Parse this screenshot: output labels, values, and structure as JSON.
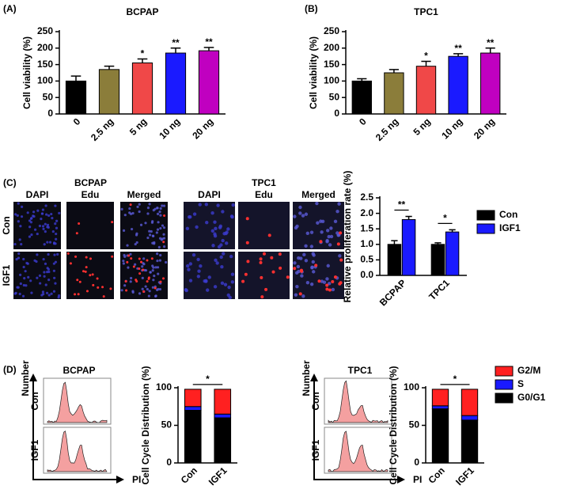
{
  "panel_labels": [
    "(A)",
    "(B)",
    "(C)",
    "(D)"
  ],
  "image_panel": {
    "groups": [
      {
        "title": "BCPAP",
        "columns": [
          "DAPI",
          "Edu",
          "Merged"
        ]
      },
      {
        "title": "TPC1",
        "columns": [
          "DAPI",
          "Edu",
          "Merged"
        ]
      }
    ],
    "rows": [
      "Con",
      "IGF1"
    ]
  },
  "flow_panels": [
    {
      "title": "BCPAP",
      "rows": [
        "Con",
        "IGF1"
      ],
      "x_label": "PI",
      "y_label": "Number"
    },
    {
      "title": "TPC1",
      "rows": [
        "Con",
        "IGF1"
      ],
      "x_label": "PI",
      "y_label": "Number"
    }
  ],
  "chart_data": [
    {
      "type": "bar",
      "title": "BCPAP",
      "y_label": "Cell  viability (%)",
      "categories": [
        "0",
        "2.5 ng",
        "5 ng",
        "10 ng",
        "20 ng"
      ],
      "values": [
        100,
        135,
        155,
        185,
        192
      ],
      "errors": [
        15,
        10,
        12,
        15,
        10
      ],
      "colors": [
        "#000000",
        "#8b7d3a",
        "#f04848",
        "#1a1aff",
        "#c000c0"
      ],
      "value_annotations": [
        null,
        null,
        "*",
        "**",
        "**"
      ],
      "ylim": [
        0,
        250
      ],
      "yticks": [
        0,
        50,
        100,
        150,
        200,
        250
      ]
    },
    {
      "type": "bar",
      "title": "TPC1",
      "y_label": "Cell  viability (%)",
      "categories": [
        "0",
        "2.5 ng",
        "5 ng",
        "10 ng",
        "20 ng"
      ],
      "values": [
        100,
        125,
        145,
        175,
        185
      ],
      "errors": [
        7,
        10,
        15,
        8,
        15
      ],
      "colors": [
        "#000000",
        "#8b7d3a",
        "#f04848",
        "#1a1aff",
        "#c000c0"
      ],
      "value_annotations": [
        null,
        null,
        "*",
        "**",
        "**"
      ],
      "ylim": [
        0,
        250
      ],
      "yticks": [
        0,
        50,
        100,
        150,
        200,
        250
      ]
    },
    {
      "type": "grouped_bar",
      "y_label": "Relative proliferation rate (%)",
      "categories": [
        "BCPAP",
        "TPC1"
      ],
      "series": [
        {
          "name": "Con",
          "color": "#000000",
          "values": [
            1.0,
            1.0
          ],
          "errors": [
            0.12,
            0.05
          ]
        },
        {
          "name": "IGF1",
          "color": "#1a1aff",
          "values": [
            1.8,
            1.4
          ],
          "errors": [
            0.1,
            0.07
          ]
        }
      ],
      "significance": [
        "**",
        "*"
      ],
      "legend": true,
      "ylim": [
        0,
        2.5
      ],
      "yticks": [
        {
          "value": 0,
          "label": "0.0"
        },
        0.5,
        {
          "value": 1,
          "label": "1.0"
        },
        1.5,
        {
          "value": 2,
          "label": "2.0"
        },
        2.5
      ]
    },
    {
      "type": "stacked_bar",
      "y_label": "Cell Cycle Distribution (%)",
      "categories": [
        "Con",
        "IGF1"
      ],
      "series": [
        {
          "color": "#000000",
          "values": [
            70,
            60
          ]
        },
        {
          "color": "#1a1aff",
          "values": [
            5,
            5
          ]
        },
        {
          "color": "#ff2020",
          "values": [
            23,
            33
          ]
        }
      ],
      "significance": "*",
      "legend": false,
      "ylim": [
        0,
        100
      ],
      "yticks": [
        0,
        50,
        100
      ]
    },
    {
      "type": "stacked_bar",
      "y_label": "Cell Cycle Distribution (%)",
      "categories": [
        "Con",
        "IGF1"
      ],
      "series": [
        {
          "name": "G0/G1",
          "color": "#000000",
          "values": [
            72,
            57
          ]
        },
        {
          "name": "S",
          "color": "#1a1aff",
          "values": [
            4,
            6
          ]
        },
        {
          "name": "G2/M",
          "color": "#ff2020",
          "values": [
            22,
            35
          ]
        }
      ],
      "significance": "*",
      "legend": true,
      "ylim": [
        0,
        100
      ],
      "yticks": [
        0,
        50,
        100
      ]
    }
  ]
}
